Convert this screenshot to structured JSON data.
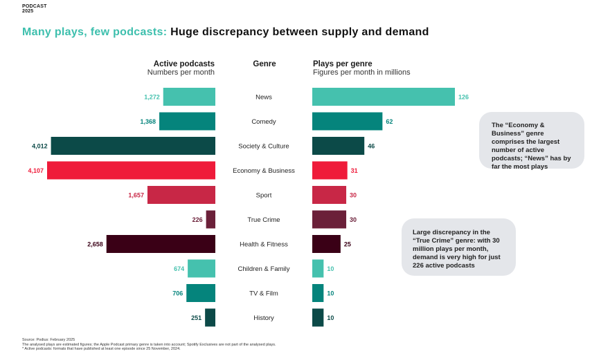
{
  "brand": {
    "line1": "PODCAST",
    "line2": "2025"
  },
  "title": {
    "highlight": "Many plays, few podcasts:",
    "rest": "Huge discrepancy between supply and demand"
  },
  "headers": {
    "left_title": "Active podcasts",
    "left_sub": "Numbers per month",
    "center_title": "Genre",
    "right_title": "Plays per genre",
    "right_sub": "Figures per month in millions"
  },
  "chart_data": {
    "type": "bar",
    "title": "Many plays, few podcasts: Huge discrepancy between supply and demand",
    "categories": [
      "News",
      "Comedy",
      "Society & Culture",
      "Economy & Business",
      "Sport",
      "True Crime",
      "Health & Fitness",
      "Children & Family",
      "TV & Film",
      "History"
    ],
    "series": [
      {
        "name": "Active podcasts",
        "values": [
          1272,
          1368,
          4012,
          4107,
          1657,
          226,
          2658,
          674,
          706,
          251
        ],
        "labels": [
          "1,272",
          "1,368",
          "4,012",
          "4,107",
          "1,657",
          "226",
          "2,658",
          "674",
          "706",
          "251"
        ]
      },
      {
        "name": "Plays per genre",
        "values": [
          126,
          62,
          46,
          31,
          30,
          30,
          25,
          10,
          10,
          10
        ],
        "labels": [
          "126",
          "62",
          "46",
          "31",
          "30",
          "30",
          "25",
          "10",
          "10",
          "10"
        ]
      }
    ],
    "colors": [
      "#45c1ae",
      "#05847c",
      "#0c4a48",
      "#ef1b3a",
      "#c82746",
      "#6b2039",
      "#3a0016",
      "#45c1ae",
      "#05847c",
      "#0c4a48"
    ],
    "grid": false
  },
  "callouts": [
    {
      "text": "The “Economy & Business” genre comprises the largest number of active podcasts; “News” has by far the most plays"
    },
    {
      "text": "Large discrepancy in the “True Crime” genre: with 30 million plays per month, demand is very high for just 226 active podcasts"
    }
  ],
  "footnotes": [
    "Source: Podius: February 2025",
    "The analysed plays are estimated figures; the Apple Podcast primary genre is taken into account; Spotify Exclusives are not part of the analysed plays.",
    "* Active podcasts: formats that have published at least one episode since 25 November, 2024."
  ]
}
